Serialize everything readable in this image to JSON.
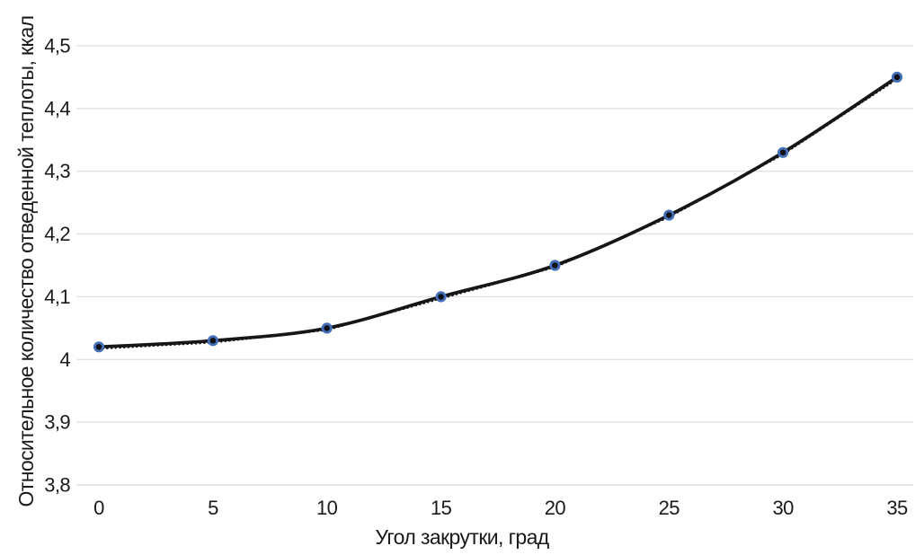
{
  "figure": {
    "background": "#ffffff"
  },
  "chart_data": {
    "type": "line",
    "title": "",
    "xlabel": "Угол закрутки, град",
    "ylabel": "Относительное количество отведенной теплоты, ккал",
    "x": [
      0,
      5,
      10,
      15,
      20,
      25,
      30,
      35
    ],
    "xtick_labels": [
      "0",
      "5",
      "10",
      "15",
      "20",
      "25",
      "30",
      "35"
    ],
    "series": [
      {
        "name": "Относительное количество отведенной теплоты, ккал",
        "values": [
          4.02,
          4.03,
          4.05,
          4.1,
          4.15,
          4.23,
          4.33,
          4.45
        ],
        "line_style": "dotted data line with solid smooth trend curve",
        "marker": "circle"
      }
    ],
    "ylim": [
      3.8,
      4.5
    ],
    "ytick_values": [
      3.8,
      3.9,
      4,
      4.1,
      4.2,
      4.3,
      4.4,
      4.5
    ],
    "ytick_labels": [
      "3,8",
      "3,9",
      "4",
      "4,1",
      "4,2",
      "4,3",
      "4,4",
      "4,5"
    ],
    "grid": "horizontal",
    "legend": "none",
    "colors": {
      "line": "#161616",
      "marker_fill": "#0e1118",
      "marker_ring": "#4470b8",
      "gridline": "#e1e1e1",
      "text": "#1a1a1a",
      "background": "#ffffff"
    }
  }
}
